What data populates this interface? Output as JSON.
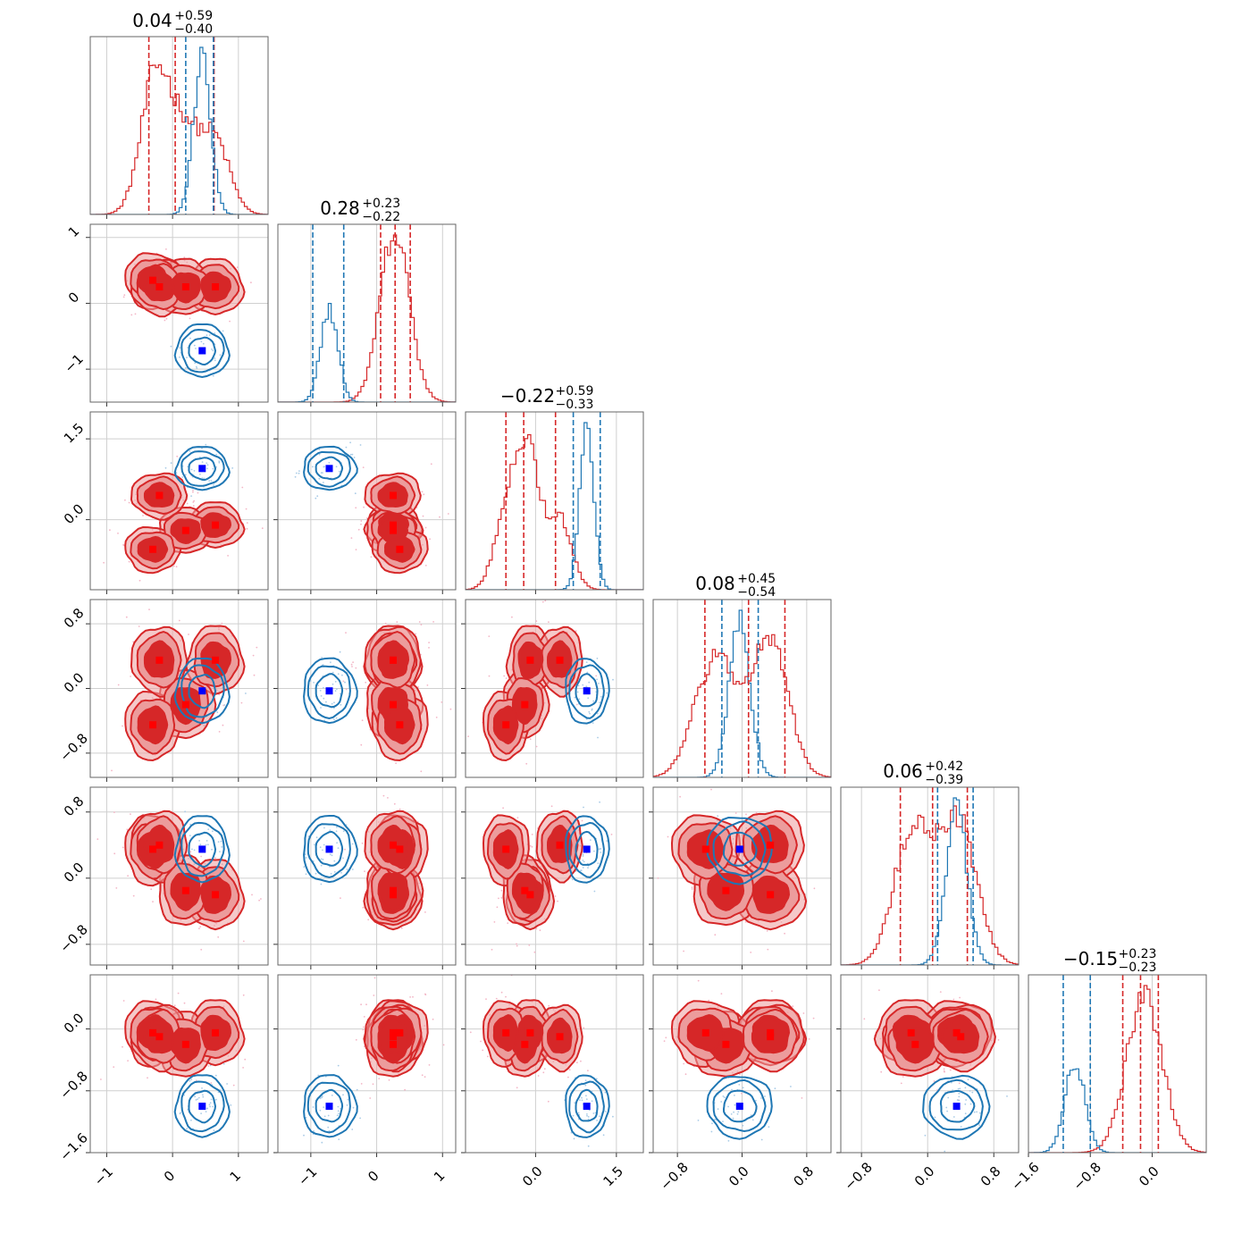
{
  "chart_data": {
    "type": "corner",
    "ndim": 6,
    "grid": true,
    "colors": {
      "red": "#d62728",
      "red_light": "#ec9c9c",
      "blue": "#1f77b4",
      "blue_marker": "#0000ff",
      "red_marker": "#ff0000"
    },
    "titles": [
      {
        "value": "0.04",
        "plus": "+0.59",
        "minus": "−0.40"
      },
      {
        "value": "0.28",
        "plus": "+0.23",
        "minus": "−0.22"
      },
      {
        "value": "−0.22",
        "plus": "+0.59",
        "minus": "−0.33"
      },
      {
        "value": "0.08",
        "plus": "+0.45",
        "minus": "−0.54"
      },
      {
        "value": "0.06",
        "plus": "+0.42",
        "minus": "−0.39"
      },
      {
        "value": "−0.15",
        "plus": "+0.23",
        "minus": "−0.23"
      }
    ],
    "ranges": [
      [
        -1.25,
        1.45
      ],
      [
        -1.5,
        1.2
      ],
      [
        -1.3,
        2.0
      ],
      [
        -1.1,
        1.1
      ],
      [
        -1.05,
        1.1
      ],
      [
        -1.6,
        0.7
      ]
    ],
    "ticks": [
      [
        {
          "v": -1,
          "label": "−1"
        },
        {
          "v": 0,
          "label": "0"
        },
        {
          "v": 1,
          "label": "1"
        }
      ],
      [
        {
          "v": -1,
          "label": "−1"
        },
        {
          "v": 0,
          "label": "0"
        },
        {
          "v": 1,
          "label": "1"
        }
      ],
      [
        {
          "v": 0.0,
          "label": "0.0"
        },
        {
          "v": 1.5,
          "label": "1.5"
        }
      ],
      [
        {
          "v": -0.8,
          "label": "−0.8"
        },
        {
          "v": 0.0,
          "label": "0.0"
        },
        {
          "v": 0.8,
          "label": "0.8"
        }
      ],
      [
        {
          "v": -0.8,
          "label": "−0.8"
        },
        {
          "v": 0.0,
          "label": "0.0"
        },
        {
          "v": 0.8,
          "label": "0.8"
        }
      ],
      [
        {
          "v": -1.6,
          "label": "−1.6"
        },
        {
          "v": -0.8,
          "label": "−0.8"
        },
        {
          "v": 0.0,
          "label": "0.0"
        }
      ]
    ],
    "red_modes": [
      [
        0.65,
        0.25,
        -0.1,
        0.35,
        -0.2,
        -0.05
      ],
      [
        0.2,
        0.25,
        -0.2,
        -0.2,
        -0.15,
        -0.2
      ],
      [
        -0.3,
        0.35,
        -0.55,
        -0.45,
        0.35,
        -0.05
      ],
      [
        -0.2,
        0.25,
        0.45,
        0.35,
        0.4,
        -0.1
      ]
    ],
    "blue_mode": [
      0.45,
      -0.72,
      0.95,
      -0.03,
      0.35,
      -1.0
    ],
    "blue_quantiles": [
      [
        0.2,
        0.62
      ],
      [
        -0.97,
        -0.5
      ],
      [
        0.7,
        1.2
      ],
      [
        -0.25,
        0.2
      ],
      [
        0.12,
        0.55
      ],
      [
        -1.15,
        -0.8
      ]
    ],
    "red_quantiles": [
      [
        -0.36,
        0.04,
        0.63
      ],
      [
        0.06,
        0.28,
        0.51
      ],
      [
        -0.55,
        -0.22,
        0.37
      ],
      [
        -0.46,
        0.08,
        0.53
      ],
      [
        -0.33,
        0.06,
        0.48
      ],
      [
        -0.38,
        -0.15,
        0.08
      ]
    ]
  }
}
